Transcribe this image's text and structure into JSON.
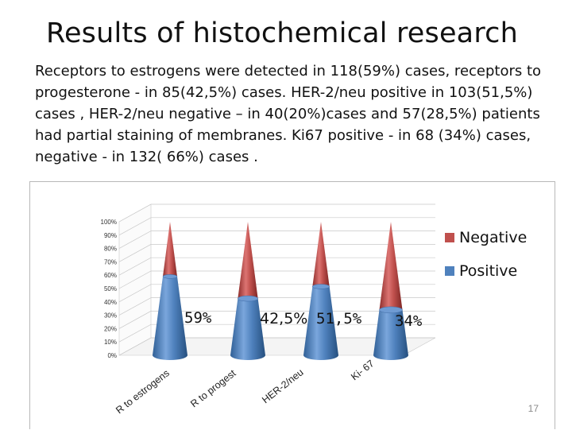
{
  "title": "Results of histochemical research",
  "body_text": "Receptors to estrogens were detected in 118(59%) cases, receptors to progesterone - in 85(42,5%) cases. HER-2/neu positive in 103(51,5%) cases , HER-2/neu negative – in 40(20%)cases and 57(28,5%) patients had partial staining of membranes. Ki67 positive - in 68 (34%) cases, negative - in  132( 66%) cases .",
  "slide_number": "17",
  "colors": {
    "positive": "#4f81bd",
    "negative": "#c0504d",
    "grid": "#c8c8c8",
    "frame": "#b8b8b8"
  },
  "chart_data": {
    "type": "bar",
    "shape": "3d-cone-stacked-100",
    "categories": [
      "R to estrogens",
      "R to progest",
      "HER-2/neu",
      "Ki- 67"
    ],
    "series": [
      {
        "name": "Positive",
        "values": [
          59,
          42.5,
          51.5,
          34
        ]
      },
      {
        "name": "Negative",
        "values": [
          41,
          57.5,
          48.5,
          66
        ]
      }
    ],
    "data_labels": [
      "59%",
      "42,5%",
      "51,5%",
      "34%"
    ],
    "y_ticks": [
      "0%",
      "10%",
      "20%",
      "30%",
      "40%",
      "50%",
      "60%",
      "70%",
      "80%",
      "90%",
      "100%"
    ],
    "ylim": [
      0,
      100
    ],
    "grid": true,
    "legend_position": "right",
    "legend": [
      "Negative",
      "Positive"
    ]
  }
}
